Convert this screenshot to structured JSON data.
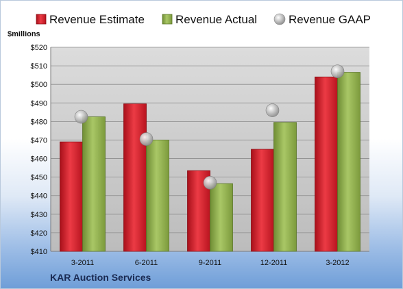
{
  "chart_data": {
    "type": "bar",
    "categories": [
      "3-2011",
      "6-2011",
      "9-2011",
      "12-2011",
      "3-2012"
    ],
    "series": [
      {
        "name": "Revenue Estimate",
        "kind": "bar",
        "color": "#d0202c",
        "values": [
          469,
          489.5,
          453.5,
          465,
          504
        ]
      },
      {
        "name": "Revenue Actual",
        "kind": "bar",
        "color": "#8fb04a",
        "values": [
          482.5,
          470,
          446.5,
          479.5,
          506.5
        ]
      },
      {
        "name": "Revenue GAAP",
        "kind": "marker",
        "color": "#b8b8b8",
        "values": [
          482.5,
          470.5,
          447,
          486,
          507
        ]
      }
    ],
    "ylabel": "$millions",
    "ylim": [
      410,
      520
    ],
    "yticks": [
      410,
      420,
      430,
      440,
      450,
      460,
      470,
      480,
      490,
      500,
      510,
      520
    ],
    "ytick_labels": [
      "$410",
      "$420",
      "$430",
      "$440",
      "$450",
      "$460",
      "$470",
      "$480",
      "$490",
      "$500",
      "$510",
      "$520"
    ],
    "grid": true,
    "legend_position": "top"
  },
  "footer": {
    "company": "KAR Auction Services"
  }
}
